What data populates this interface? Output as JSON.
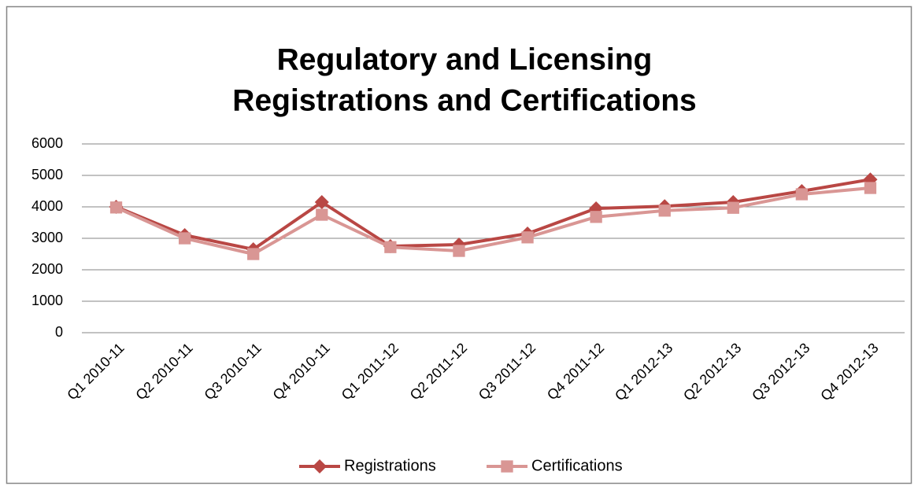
{
  "chart_data": {
    "type": "line",
    "title": [
      "Regulatory and Licensing",
      "Registrations and Certifications"
    ],
    "categories": [
      "Q1 2010-11",
      "Q2 2010-11",
      "Q3 2010-11",
      "Q4 2010-11",
      "Q1 2011-12",
      "Q2 2011-12",
      "Q3 2011-12",
      "Q4 2011-12",
      "Q1 2012-13",
      "Q2 2012-13",
      "Q3 2012-13",
      "Q4 2012-13"
    ],
    "series": [
      {
        "name": "Registrations",
        "color": "#b94744",
        "marker": "diamond",
        "values": [
          4000,
          3100,
          2650,
          4150,
          2750,
          2800,
          3150,
          3950,
          4020,
          4150,
          4500,
          4870
        ]
      },
      {
        "name": "Certifications",
        "color": "#d99694",
        "marker": "square",
        "values": [
          3980,
          3000,
          2500,
          3750,
          2720,
          2600,
          3030,
          3680,
          3880,
          3970,
          4400,
          4600
        ]
      }
    ],
    "ylim": [
      0,
      6000
    ],
    "yticks": [
      0,
      1000,
      2000,
      3000,
      4000,
      5000,
      6000
    ],
    "grid": true,
    "legend": "bottom"
  }
}
